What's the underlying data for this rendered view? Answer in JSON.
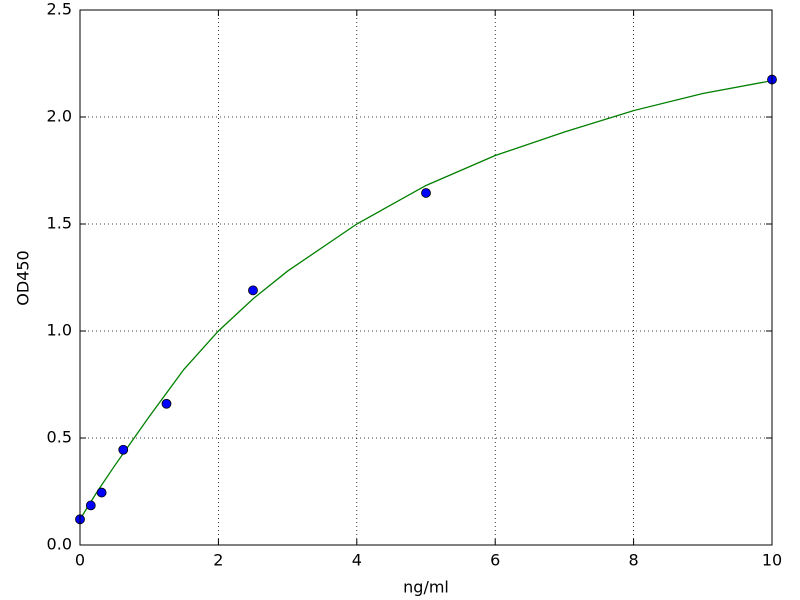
{
  "chart_data": {
    "type": "scatter",
    "xlabel": "ng/ml",
    "ylabel": "OD450",
    "xlim": [
      0,
      10
    ],
    "ylim": [
      0,
      2.5
    ],
    "xticks": [
      0,
      2,
      4,
      6,
      8,
      10
    ],
    "yticks": [
      {
        "value": 0,
        "label": "0.0"
      },
      {
        "value": 0.5,
        "label": "0.5"
      },
      {
        "value": 1,
        "label": "1.0"
      },
      {
        "value": 1.5,
        "label": "1.5"
      },
      {
        "value": 2,
        "label": "2.0"
      },
      {
        "value": 2.5,
        "label": "2.5"
      }
    ],
    "grid": true,
    "series": [
      {
        "type": "scatter",
        "color": "#0000ff",
        "x": [
          0,
          0.156,
          0.3125,
          0.625,
          1.25,
          2.5,
          5,
          10
        ],
        "values": [
          0.12,
          0.185,
          0.245,
          0.445,
          0.66,
          1.19,
          1.645,
          2.175
        ]
      },
      {
        "type": "line",
        "color": "#008000",
        "x": [
          0,
          0.25,
          0.5,
          1,
          1.5,
          2,
          2.5,
          3,
          4,
          5,
          6,
          7,
          8,
          9,
          10
        ],
        "values": [
          0.12,
          0.25,
          0.37,
          0.6,
          0.82,
          1.0,
          1.15,
          1.28,
          1.5,
          1.68,
          1.82,
          1.93,
          2.03,
          2.11,
          2.17
        ]
      }
    ]
  }
}
